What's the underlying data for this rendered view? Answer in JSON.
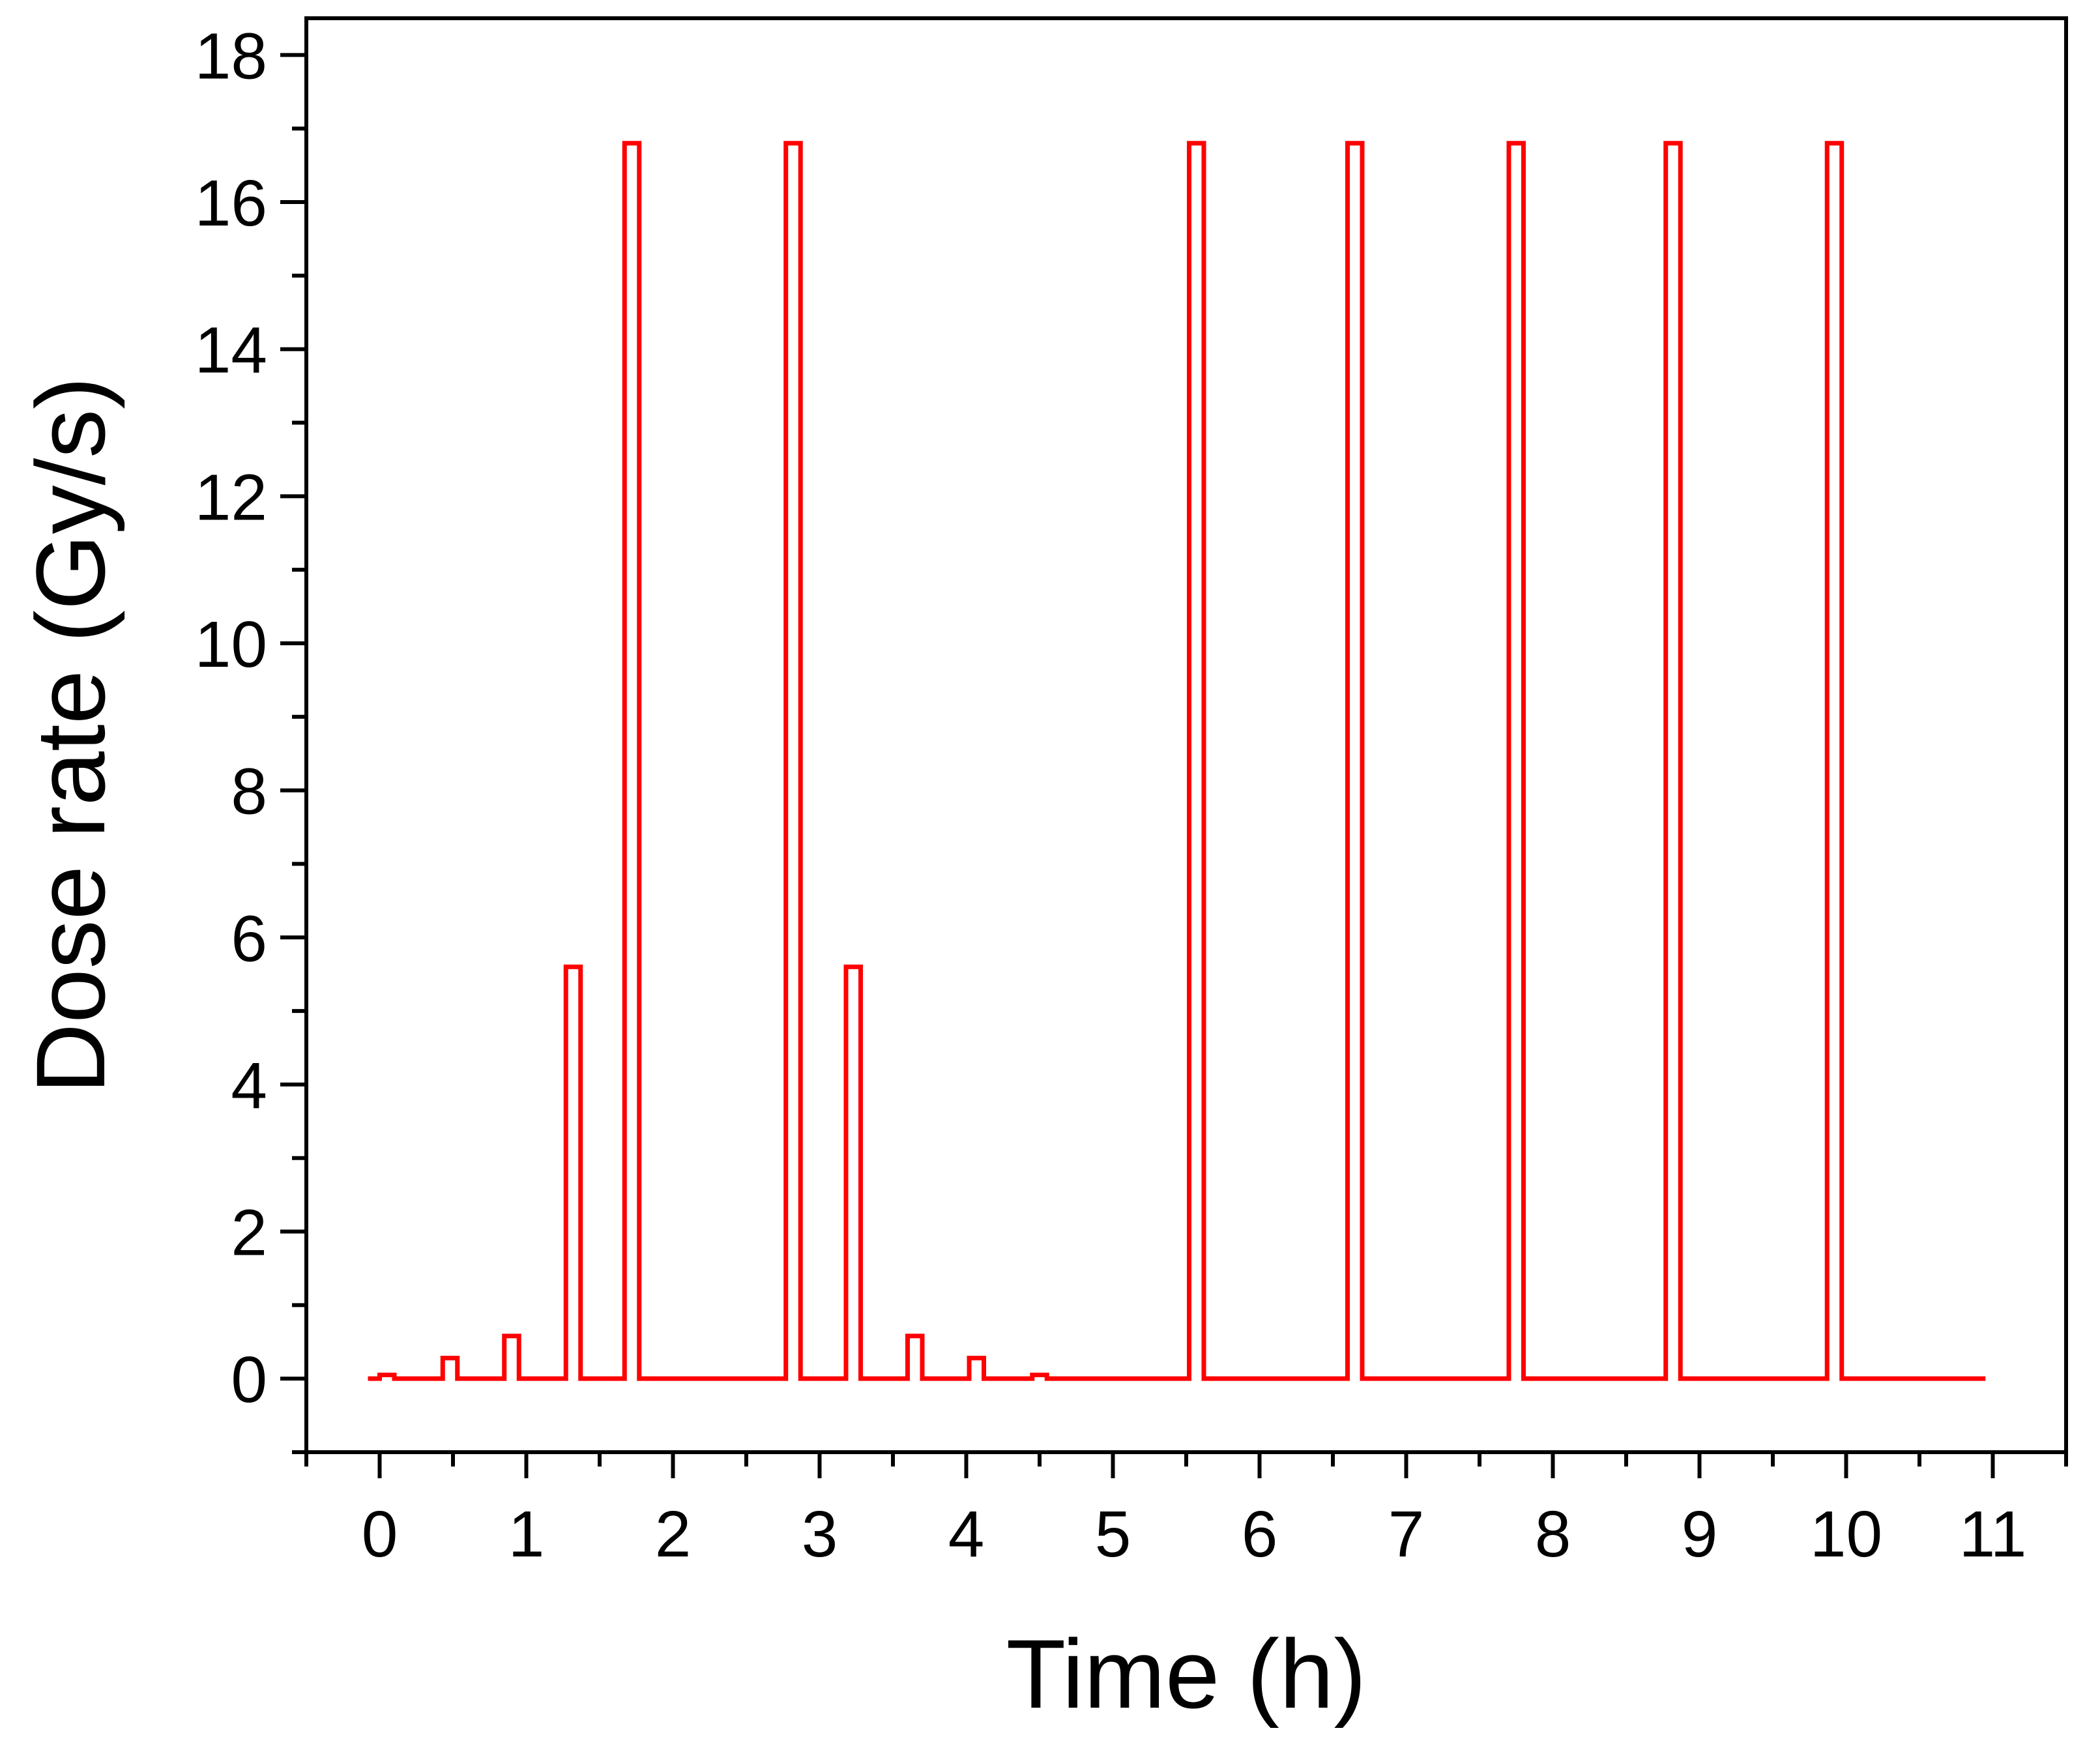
{
  "chart_data": {
    "type": "line",
    "title": "",
    "xlabel": "Time (h)",
    "ylabel": "Dose rate (Gy/s)",
    "xlim": [
      -0.5,
      11.5
    ],
    "ylim": [
      -1,
      18.5
    ],
    "grid": false,
    "legend": "none",
    "xticks": [
      0,
      1,
      2,
      3,
      4,
      5,
      6,
      7,
      8,
      9,
      10,
      11
    ],
    "xtick_labels": [
      "0",
      "1",
      "2",
      "3",
      "4",
      "5",
      "6",
      "7",
      "8",
      "9",
      "10",
      "11"
    ],
    "yticks": [
      0,
      2,
      4,
      6,
      8,
      10,
      12,
      14,
      16,
      18
    ],
    "ytick_labels": [
      "0",
      "2",
      "4",
      "6",
      "8",
      "10",
      "12",
      "14",
      "16",
      "18"
    ],
    "series": [
      {
        "color": "#ff0000",
        "pulses": [
          {
            "start": 0.0,
            "end": 0.1,
            "value": 0.05
          },
          {
            "start": 0.43,
            "end": 0.53,
            "value": 0.28
          },
          {
            "start": 0.85,
            "end": 0.95,
            "value": 0.58
          },
          {
            "start": 1.27,
            "end": 1.37,
            "value": 5.6
          },
          {
            "start": 1.67,
            "end": 1.77,
            "value": 16.8
          },
          {
            "start": 2.77,
            "end": 2.87,
            "value": 16.8
          },
          {
            "start": 3.18,
            "end": 3.28,
            "value": 5.6
          },
          {
            "start": 3.6,
            "end": 3.7,
            "value": 0.58
          },
          {
            "start": 4.02,
            "end": 4.12,
            "value": 0.28
          },
          {
            "start": 4.45,
            "end": 4.55,
            "value": 0.05
          },
          {
            "start": 5.52,
            "end": 5.62,
            "value": 16.8
          },
          {
            "start": 6.6,
            "end": 6.7,
            "value": 16.8
          },
          {
            "start": 7.7,
            "end": 7.8,
            "value": 16.8
          },
          {
            "start": 8.77,
            "end": 8.87,
            "value": 16.8
          },
          {
            "start": 9.87,
            "end": 9.97,
            "value": 16.8
          }
        ],
        "x_start": -0.08,
        "x_end": 10.95,
        "baseline": 0
      }
    ]
  }
}
